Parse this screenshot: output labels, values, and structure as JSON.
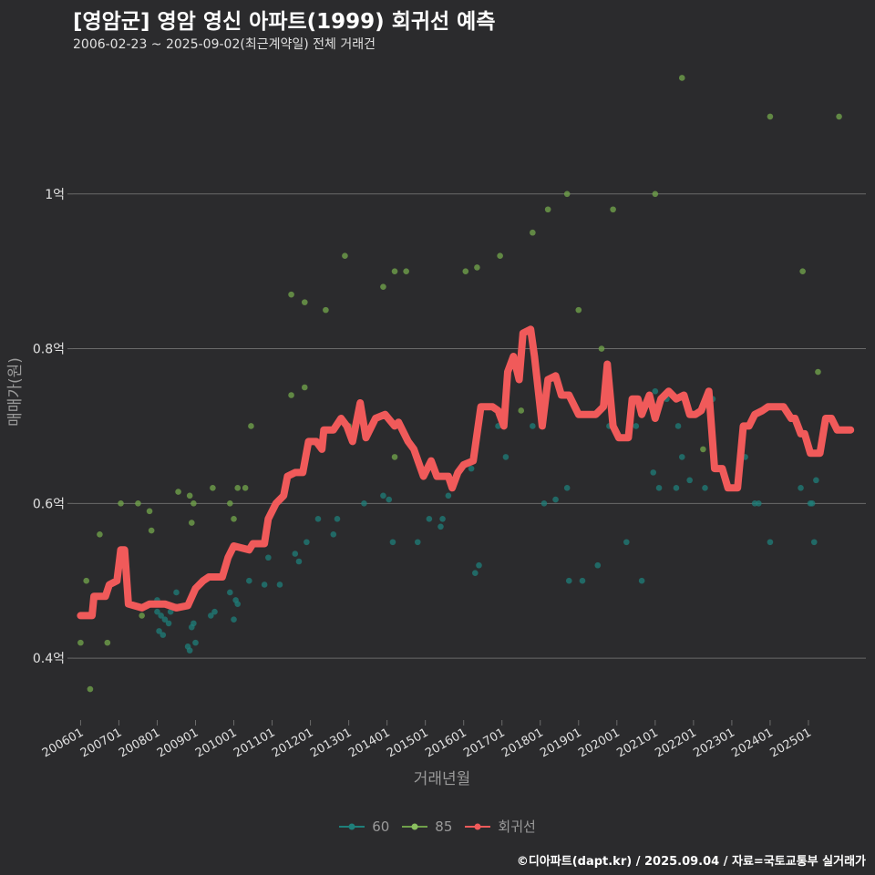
{
  "title": "[영암군] 영암 영신 아파트(1999) 회귀선 예측",
  "subtitle": "2006-02-23 ~ 2025-09-02(최근계약일) 전체 거래건",
  "credit": "©디아파트(dapt.kr) / 2025.09.04 / 자료=국토교통부 실거래가",
  "colors": {
    "background": "#2b2b2d",
    "grid": "#6a6a6a",
    "s60": "#1f7f7a",
    "s85": "#6fa04a",
    "regression": "#f05a5a",
    "axis_text": "#e0e0e0",
    "axis_title": "#9a9a9a"
  },
  "legend": {
    "items": [
      {
        "key": "60",
        "label": "60"
      },
      {
        "key": "85",
        "label": "85"
      },
      {
        "key": "reg",
        "label": "회귀선"
      }
    ]
  },
  "chart_data": {
    "type": "scatter",
    "xlabel": "거래년월",
    "ylabel": "매매가(원)",
    "xlim": [
      2005.8,
      2026.5
    ],
    "ylim": [
      0.32,
      1.18
    ],
    "x_ticks": [
      {
        "v": 2006.0,
        "label": "200601"
      },
      {
        "v": 2007.0,
        "label": "200701"
      },
      {
        "v": 2008.0,
        "label": "200801"
      },
      {
        "v": 2009.0,
        "label": "200901"
      },
      {
        "v": 2010.0,
        "label": "201001"
      },
      {
        "v": 2011.0,
        "label": "201101"
      },
      {
        "v": 2012.0,
        "label": "201201"
      },
      {
        "v": 2013.0,
        "label": "201301"
      },
      {
        "v": 2014.0,
        "label": "201401"
      },
      {
        "v": 2015.0,
        "label": "201501"
      },
      {
        "v": 2016.0,
        "label": "201601"
      },
      {
        "v": 2017.0,
        "label": "201701"
      },
      {
        "v": 2018.0,
        "label": "201801"
      },
      {
        "v": 2019.0,
        "label": "201901"
      },
      {
        "v": 2020.0,
        "label": "202001"
      },
      {
        "v": 2021.0,
        "label": "202101"
      },
      {
        "v": 2022.0,
        "label": "202201"
      },
      {
        "v": 2023.0,
        "label": "202301"
      },
      {
        "v": 2024.0,
        "label": "202401"
      },
      {
        "v": 2025.0,
        "label": "202501"
      }
    ],
    "y_ticks": [
      {
        "v": 0.4,
        "label": "0.4억"
      },
      {
        "v": 0.6,
        "label": "0.6억"
      },
      {
        "v": 0.8,
        "label": "0.8억"
      },
      {
        "v": 1.0,
        "label": "1억"
      }
    ],
    "series": [
      {
        "name": "60",
        "points": [
          [
            2008.0,
            0.475
          ],
          [
            2008.0,
            0.46
          ],
          [
            2008.05,
            0.435
          ],
          [
            2008.1,
            0.455
          ],
          [
            2008.15,
            0.43
          ],
          [
            2008.2,
            0.45
          ],
          [
            2008.3,
            0.445
          ],
          [
            2008.35,
            0.46
          ],
          [
            2008.5,
            0.485
          ],
          [
            2008.8,
            0.415
          ],
          [
            2008.85,
            0.41
          ],
          [
            2008.9,
            0.44
          ],
          [
            2008.95,
            0.445
          ],
          [
            2009.0,
            0.42
          ],
          [
            2009.4,
            0.455
          ],
          [
            2009.5,
            0.46
          ],
          [
            2009.9,
            0.485
          ],
          [
            2010.0,
            0.45
          ],
          [
            2010.05,
            0.475
          ],
          [
            2010.1,
            0.47
          ],
          [
            2010.4,
            0.5
          ],
          [
            2010.8,
            0.495
          ],
          [
            2010.9,
            0.53
          ],
          [
            2011.2,
            0.495
          ],
          [
            2011.6,
            0.535
          ],
          [
            2011.7,
            0.525
          ],
          [
            2011.9,
            0.55
          ],
          [
            2012.2,
            0.58
          ],
          [
            2012.6,
            0.56
          ],
          [
            2012.7,
            0.58
          ],
          [
            2013.4,
            0.6
          ],
          [
            2013.9,
            0.61
          ],
          [
            2014.05,
            0.605
          ],
          [
            2014.15,
            0.55
          ],
          [
            2014.8,
            0.55
          ],
          [
            2015.1,
            0.58
          ],
          [
            2015.4,
            0.57
          ],
          [
            2015.45,
            0.58
          ],
          [
            2015.6,
            0.61
          ],
          [
            2016.2,
            0.645
          ],
          [
            2016.3,
            0.51
          ],
          [
            2016.4,
            0.52
          ],
          [
            2016.7,
            0.725
          ],
          [
            2016.9,
            0.7
          ],
          [
            2017.1,
            0.66
          ],
          [
            2017.8,
            0.7
          ],
          [
            2018.1,
            0.6
          ],
          [
            2018.4,
            0.605
          ],
          [
            2018.7,
            0.62
          ],
          [
            2018.75,
            0.5
          ],
          [
            2019.1,
            0.5
          ],
          [
            2019.5,
            0.52
          ],
          [
            2019.8,
            0.7
          ],
          [
            2020.0,
            0.69
          ],
          [
            2020.25,
            0.55
          ],
          [
            2020.5,
            0.7
          ],
          [
            2020.65,
            0.5
          ],
          [
            2020.95,
            0.64
          ],
          [
            2021.0,
            0.745
          ],
          [
            2021.1,
            0.62
          ],
          [
            2021.3,
            0.735
          ],
          [
            2021.55,
            0.62
          ],
          [
            2021.6,
            0.7
          ],
          [
            2021.7,
            0.66
          ],
          [
            2021.9,
            0.63
          ],
          [
            2022.3,
            0.62
          ],
          [
            2022.5,
            0.735
          ],
          [
            2022.9,
            0.62
          ],
          [
            2023.35,
            0.66
          ],
          [
            2023.6,
            0.6
          ],
          [
            2023.7,
            0.6
          ],
          [
            2024.0,
            0.55
          ],
          [
            2024.8,
            0.62
          ],
          [
            2025.05,
            0.6
          ],
          [
            2025.1,
            0.6
          ],
          [
            2025.15,
            0.55
          ],
          [
            2025.2,
            0.63
          ]
        ]
      },
      {
        "name": "85",
        "points": [
          [
            2006.0,
            0.42
          ],
          [
            2006.15,
            0.5
          ],
          [
            2006.25,
            0.36
          ],
          [
            2006.5,
            0.56
          ],
          [
            2006.7,
            0.42
          ],
          [
            2007.05,
            0.6
          ],
          [
            2007.5,
            0.6
          ],
          [
            2007.6,
            0.455
          ],
          [
            2007.8,
            0.59
          ],
          [
            2007.85,
            0.565
          ],
          [
            2008.55,
            0.615
          ],
          [
            2008.85,
            0.61
          ],
          [
            2008.9,
            0.575
          ],
          [
            2008.95,
            0.6
          ],
          [
            2009.45,
            0.62
          ],
          [
            2009.9,
            0.6
          ],
          [
            2010.0,
            0.58
          ],
          [
            2010.1,
            0.62
          ],
          [
            2010.3,
            0.62
          ],
          [
            2010.45,
            0.7
          ],
          [
            2011.5,
            0.87
          ],
          [
            2011.5,
            0.74
          ],
          [
            2011.85,
            0.86
          ],
          [
            2011.85,
            0.75
          ],
          [
            2012.4,
            0.85
          ],
          [
            2012.9,
            0.92
          ],
          [
            2013.0,
            0.7
          ],
          [
            2013.9,
            0.88
          ],
          [
            2014.2,
            0.9
          ],
          [
            2014.2,
            0.66
          ],
          [
            2014.5,
            0.9
          ],
          [
            2016.05,
            0.9
          ],
          [
            2016.35,
            0.905
          ],
          [
            2016.95,
            0.92
          ],
          [
            2017.5,
            0.72
          ],
          [
            2017.8,
            0.95
          ],
          [
            2018.2,
            0.98
          ],
          [
            2018.7,
            1.0
          ],
          [
            2019.0,
            0.85
          ],
          [
            2019.6,
            0.8
          ],
          [
            2019.9,
            0.98
          ],
          [
            2021.0,
            1.0
          ],
          [
            2021.7,
            1.15
          ],
          [
            2022.25,
            0.67
          ],
          [
            2023.3,
            0.7
          ],
          [
            2024.0,
            1.1
          ],
          [
            2024.85,
            0.9
          ],
          [
            2025.25,
            0.77
          ],
          [
            2025.8,
            1.1
          ]
        ]
      },
      {
        "name": "회귀선",
        "points": [
          [
            2006.0,
            0.455
          ],
          [
            2006.3,
            0.455
          ],
          [
            2006.35,
            0.48
          ],
          [
            2006.65,
            0.48
          ],
          [
            2006.75,
            0.495
          ],
          [
            2006.95,
            0.5
          ],
          [
            2007.05,
            0.54
          ],
          [
            2007.15,
            0.54
          ],
          [
            2007.25,
            0.47
          ],
          [
            2007.6,
            0.465
          ],
          [
            2007.8,
            0.47
          ],
          [
            2008.2,
            0.47
          ],
          [
            2008.5,
            0.465
          ],
          [
            2008.8,
            0.468
          ],
          [
            2009.0,
            0.49
          ],
          [
            2009.2,
            0.5
          ],
          [
            2009.35,
            0.505
          ],
          [
            2009.7,
            0.505
          ],
          [
            2009.85,
            0.53
          ],
          [
            2010.0,
            0.545
          ],
          [
            2010.4,
            0.54
          ],
          [
            2010.5,
            0.548
          ],
          [
            2010.8,
            0.548
          ],
          [
            2010.9,
            0.58
          ],
          [
            2011.1,
            0.6
          ],
          [
            2011.3,
            0.61
          ],
          [
            2011.4,
            0.635
          ],
          [
            2011.6,
            0.64
          ],
          [
            2011.8,
            0.64
          ],
          [
            2011.95,
            0.68
          ],
          [
            2012.15,
            0.68
          ],
          [
            2012.3,
            0.67
          ],
          [
            2012.35,
            0.695
          ],
          [
            2012.6,
            0.695
          ],
          [
            2012.8,
            0.71
          ],
          [
            2012.95,
            0.7
          ],
          [
            2013.1,
            0.68
          ],
          [
            2013.3,
            0.73
          ],
          [
            2013.45,
            0.685
          ],
          [
            2013.7,
            0.71
          ],
          [
            2013.95,
            0.715
          ],
          [
            2014.2,
            0.7
          ],
          [
            2014.3,
            0.705
          ],
          [
            2014.55,
            0.68
          ],
          [
            2014.7,
            0.67
          ],
          [
            2014.95,
            0.635
          ],
          [
            2015.15,
            0.655
          ],
          [
            2015.3,
            0.635
          ],
          [
            2015.6,
            0.635
          ],
          [
            2015.7,
            0.62
          ],
          [
            2015.85,
            0.64
          ],
          [
            2016.0,
            0.65
          ],
          [
            2016.25,
            0.655
          ],
          [
            2016.45,
            0.725
          ],
          [
            2016.75,
            0.725
          ],
          [
            2016.9,
            0.72
          ],
          [
            2017.05,
            0.7
          ],
          [
            2017.15,
            0.77
          ],
          [
            2017.3,
            0.79
          ],
          [
            2017.45,
            0.76
          ],
          [
            2017.55,
            0.82
          ],
          [
            2017.75,
            0.825
          ],
          [
            2017.85,
            0.79
          ],
          [
            2018.05,
            0.7
          ],
          [
            2018.2,
            0.76
          ],
          [
            2018.4,
            0.765
          ],
          [
            2018.55,
            0.74
          ],
          [
            2018.75,
            0.74
          ],
          [
            2019.0,
            0.715
          ],
          [
            2019.45,
            0.715
          ],
          [
            2019.65,
            0.725
          ],
          [
            2019.75,
            0.78
          ],
          [
            2019.9,
            0.7
          ],
          [
            2020.05,
            0.685
          ],
          [
            2020.3,
            0.685
          ],
          [
            2020.4,
            0.735
          ],
          [
            2020.55,
            0.735
          ],
          [
            2020.65,
            0.715
          ],
          [
            2020.85,
            0.74
          ],
          [
            2021.0,
            0.71
          ],
          [
            2021.15,
            0.735
          ],
          [
            2021.35,
            0.745
          ],
          [
            2021.55,
            0.735
          ],
          [
            2021.75,
            0.74
          ],
          [
            2021.9,
            0.715
          ],
          [
            2022.05,
            0.715
          ],
          [
            2022.2,
            0.72
          ],
          [
            2022.4,
            0.745
          ],
          [
            2022.55,
            0.645
          ],
          [
            2022.75,
            0.645
          ],
          [
            2022.9,
            0.62
          ],
          [
            2023.15,
            0.62
          ],
          [
            2023.3,
            0.7
          ],
          [
            2023.45,
            0.7
          ],
          [
            2023.6,
            0.715
          ],
          [
            2023.8,
            0.72
          ],
          [
            2023.95,
            0.725
          ],
          [
            2024.35,
            0.725
          ],
          [
            2024.55,
            0.71
          ],
          [
            2024.65,
            0.71
          ],
          [
            2024.8,
            0.69
          ],
          [
            2024.9,
            0.69
          ],
          [
            2025.05,
            0.665
          ],
          [
            2025.3,
            0.665
          ],
          [
            2025.45,
            0.71
          ],
          [
            2025.6,
            0.71
          ],
          [
            2025.75,
            0.695
          ],
          [
            2026.1,
            0.695
          ]
        ]
      }
    ]
  }
}
